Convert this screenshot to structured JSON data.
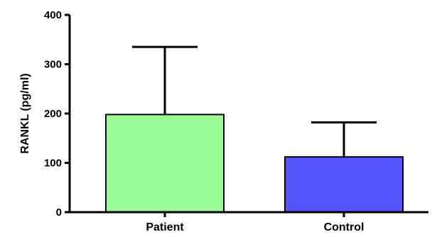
{
  "chart_data": {
    "type": "bar",
    "title": "",
    "xlabel": "",
    "ylabel": "RANKL (pg/ml)",
    "ylim": [
      0,
      400
    ],
    "yticks": [
      0,
      100,
      200,
      300,
      400
    ],
    "categories": [
      "Patient",
      "Control"
    ],
    "series": [
      {
        "values": [
          198,
          112
        ],
        "error_upper": [
          137,
          70
        ],
        "colors": [
          "#98fb98",
          "#5555ff"
        ]
      }
    ],
    "grid": false,
    "legend": "none"
  }
}
